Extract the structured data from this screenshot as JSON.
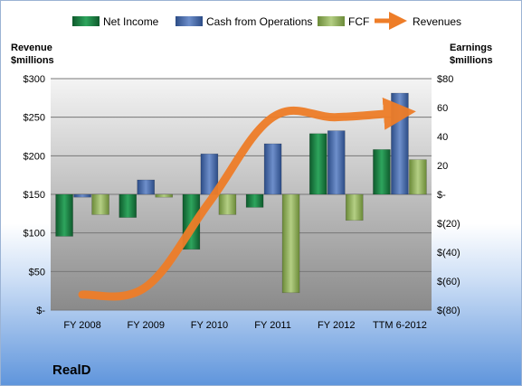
{
  "legend": {
    "net_income": "Net Income",
    "cash_ops": "Cash from Operations",
    "fcf": "FCF",
    "revenues": "Revenues"
  },
  "company": "RealD",
  "colors": {
    "net_income": "#1e8449",
    "cash_ops": "#4a6fb0",
    "fcf": "#93b360",
    "revenues": "#ee7d28"
  },
  "chart_data": {
    "type": "bar",
    "categories": [
      "FY 2008",
      "FY 2009",
      "FY 2010",
      "FY 2011",
      "FY 2012",
      "TTM 6-2012"
    ],
    "series": [
      {
        "name": "Net Income",
        "axis": "right",
        "values": [
          -29,
          -16,
          -38,
          -9,
          42,
          31
        ]
      },
      {
        "name": "Cash from Operations",
        "axis": "right",
        "values": [
          -2,
          10,
          28,
          35,
          44,
          70
        ]
      },
      {
        "name": "FCF",
        "axis": "right",
        "values": [
          -14,
          -2,
          -14,
          -68,
          -18,
          24
        ]
      },
      {
        "name": "Revenues",
        "axis": "left",
        "type": "line",
        "values": [
          20,
          30,
          140,
          250,
          250,
          256
        ]
      }
    ],
    "left_axis": {
      "title_line1": "Revenue",
      "title_line2": "$millions",
      "ylim": [
        0,
        300
      ],
      "ticks": [
        0,
        50,
        100,
        150,
        200,
        250,
        300
      ],
      "tick_labels": [
        "$-",
        "$50",
        "$100",
        "$150",
        "$200",
        "$250",
        "$300"
      ]
    },
    "right_axis": {
      "title_line1": "Earnings",
      "title_line2": "$millions",
      "ylim": [
        -80,
        80
      ],
      "ticks": [
        -80,
        -60,
        -40,
        -20,
        0,
        20,
        40,
        60,
        80
      ],
      "tick_labels": [
        "$(80)",
        "$(60)",
        "$(40)",
        "$(20)",
        "$-",
        "20",
        "40",
        "60",
        "$80"
      ]
    },
    "grid": true,
    "legend_position": "top"
  }
}
